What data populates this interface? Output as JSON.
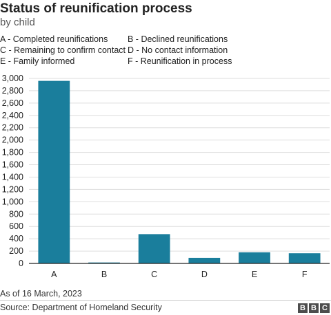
{
  "title": "Status of reunification process",
  "subtitle": "by child",
  "legend": [
    "A - Completed reunifications",
    "B - Declined reunifications",
    "C - Remaining to confirm contact",
    "D - No contact information",
    "E - Family informed",
    "F - Reunification in process"
  ],
  "note": "As of 16 March, 2023",
  "source": "Source: Department of Homeland Security",
  "logo": "BBC",
  "logo_letters": [
    "B",
    "B",
    "C"
  ],
  "colors": {
    "bar": "#1a7e9c",
    "grid": "#dddddd",
    "axis": "#222222"
  },
  "chart_data": {
    "type": "bar",
    "categories": [
      "A",
      "B",
      "C",
      "D",
      "E",
      "F"
    ],
    "values": [
      2960,
      15,
      475,
      90,
      180,
      165
    ],
    "ylim": [
      0,
      3000
    ],
    "yticks": [
      0,
      200,
      400,
      600,
      800,
      1000,
      1200,
      1400,
      1600,
      1800,
      2000,
      2200,
      2400,
      2600,
      2800,
      3000
    ],
    "ytick_labels": [
      "0",
      "200",
      "400",
      "600",
      "800",
      "1,000",
      "1,200",
      "1,400",
      "1,600",
      "1,800",
      "2,000",
      "2,200",
      "2,400",
      "2,600",
      "2,800",
      "3,000"
    ],
    "grid": true,
    "xlabel": "",
    "ylabel": ""
  }
}
